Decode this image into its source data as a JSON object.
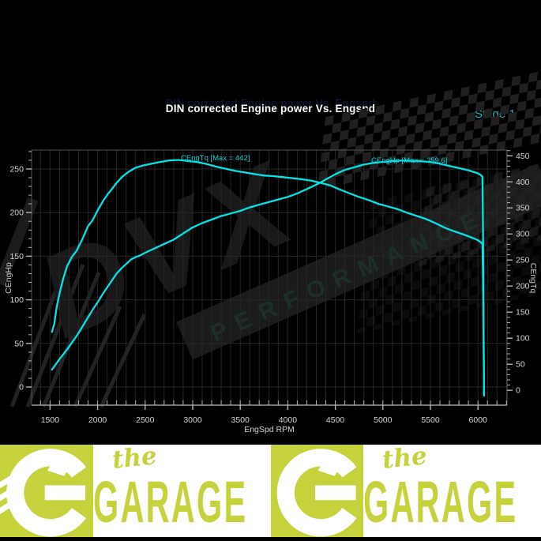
{
  "header": {
    "title": "DIN corrected Engine power Vs. Engspd",
    "stage_label": "Stage 1"
  },
  "watermark": {
    "brand": "DVX",
    "subbrand": "PERFORMANCE"
  },
  "chart_data": {
    "type": "line",
    "title": "DIN corrected Engine power Vs. Engspd",
    "xlabel": "EngSpd RPM",
    "ylabel_left": "CEngHp",
    "ylabel_right": "CEngTq",
    "x_range": [
      1306,
      6306
    ],
    "x_ticks": [
      1500,
      2000,
      2500,
      3000,
      3500,
      4000,
      4500,
      5000,
      5500,
      6000
    ],
    "x_minor_step": 100,
    "y_left_range": [
      -20.8,
      271.7
    ],
    "y_left_ticks": [
      0,
      50,
      100,
      150,
      200,
      250
    ],
    "y_right_range": [
      -28.5,
      461
    ],
    "y_right_ticks": [
      0,
      50,
      100,
      150,
      200,
      250,
      300,
      350,
      400,
      450
    ],
    "grid": true,
    "curve_color": "#00e6e6",
    "label_color": "#00d9d9",
    "series": [
      {
        "name": "CEngTq",
        "axis": "right",
        "label": "CEngTq [Max = 442]",
        "max": 442,
        "points": [
          [
            1520,
            112
          ],
          [
            1545,
            128
          ],
          [
            1570,
            160
          ],
          [
            1600,
            186
          ],
          [
            1640,
            215
          ],
          [
            1680,
            238
          ],
          [
            1730,
            256
          ],
          [
            1780,
            268
          ],
          [
            1840,
            290
          ],
          [
            1900,
            315
          ],
          [
            1950,
            327
          ],
          [
            2000,
            345
          ],
          [
            2060,
            364
          ],
          [
            2110,
            377
          ],
          [
            2150,
            386
          ],
          [
            2200,
            398
          ],
          [
            2260,
            410
          ],
          [
            2330,
            420
          ],
          [
            2400,
            427
          ],
          [
            2470,
            431
          ],
          [
            2550,
            434
          ],
          [
            2650,
            438
          ],
          [
            2750,
            441
          ],
          [
            2850,
            442
          ],
          [
            2950,
            440
          ],
          [
            3050,
            438
          ],
          [
            3150,
            434
          ],
          [
            3250,
            429
          ],
          [
            3350,
            425
          ],
          [
            3450,
            421
          ],
          [
            3550,
            418
          ],
          [
            3650,
            415
          ],
          [
            3750,
            412
          ],
          [
            3850,
            411
          ],
          [
            3950,
            409
          ],
          [
            4050,
            407
          ],
          [
            4150,
            405
          ],
          [
            4250,
            402
          ],
          [
            4350,
            398
          ],
          [
            4450,
            393
          ],
          [
            4550,
            385
          ],
          [
            4650,
            378
          ],
          [
            4750,
            371
          ],
          [
            4850,
            365
          ],
          [
            4950,
            358
          ],
          [
            5050,
            353
          ],
          [
            5150,
            348
          ],
          [
            5250,
            341
          ],
          [
            5350,
            335
          ],
          [
            5450,
            329
          ],
          [
            5550,
            321
          ],
          [
            5650,
            312
          ],
          [
            5750,
            305
          ],
          [
            5850,
            299
          ],
          [
            5950,
            292
          ],
          [
            6000,
            288
          ],
          [
            6030,
            284
          ],
          [
            6048,
            281
          ],
          [
            6055,
            190
          ],
          [
            6060,
            80
          ],
          [
            6064,
            -8
          ]
        ]
      },
      {
        "name": "CEngHp",
        "axis": "left",
        "label": "CEngHp [Max = 259.6]",
        "max": 259.6,
        "points": [
          [
            1520,
            20
          ],
          [
            1560,
            26
          ],
          [
            1600,
            32
          ],
          [
            1650,
            39
          ],
          [
            1700,
            46
          ],
          [
            1750,
            54
          ],
          [
            1800,
            62
          ],
          [
            1850,
            71
          ],
          [
            1900,
            80
          ],
          [
            1950,
            89
          ],
          [
            2000,
            97
          ],
          [
            2050,
            106
          ],
          [
            2100,
            114
          ],
          [
            2150,
            122
          ],
          [
            2200,
            130
          ],
          [
            2250,
            136
          ],
          [
            2300,
            141
          ],
          [
            2350,
            146
          ],
          [
            2400,
            149
          ],
          [
            2450,
            151
          ],
          [
            2500,
            154
          ],
          [
            2600,
            159
          ],
          [
            2700,
            164
          ],
          [
            2800,
            169
          ],
          [
            2900,
            176
          ],
          [
            3000,
            183
          ],
          [
            3100,
            188
          ],
          [
            3200,
            192
          ],
          [
            3300,
            196
          ],
          [
            3400,
            199
          ],
          [
            3500,
            202
          ],
          [
            3600,
            206
          ],
          [
            3700,
            209
          ],
          [
            3800,
            212
          ],
          [
            3900,
            215
          ],
          [
            4000,
            218
          ],
          [
            4100,
            222
          ],
          [
            4200,
            227
          ],
          [
            4300,
            232
          ],
          [
            4400,
            238
          ],
          [
            4500,
            244
          ],
          [
            4600,
            249
          ],
          [
            4700,
            252
          ],
          [
            4800,
            255
          ],
          [
            4900,
            257
          ],
          [
            5000,
            258
          ],
          [
            5100,
            259
          ],
          [
            5200,
            259.6
          ],
          [
            5300,
            259.3
          ],
          [
            5400,
            258.8
          ],
          [
            5500,
            258
          ],
          [
            5600,
            256
          ],
          [
            5700,
            253.5
          ],
          [
            5800,
            251
          ],
          [
            5900,
            248.5
          ],
          [
            6000,
            245
          ],
          [
            6030,
            243
          ],
          [
            6048,
            241
          ],
          [
            6055,
            160
          ],
          [
            6060,
            60
          ],
          [
            6064,
            -10
          ]
        ]
      }
    ]
  },
  "banner": {
    "script_text": "the",
    "name_text": "GARAGE",
    "lime": "#c6d23c",
    "white": "#ffffff"
  }
}
